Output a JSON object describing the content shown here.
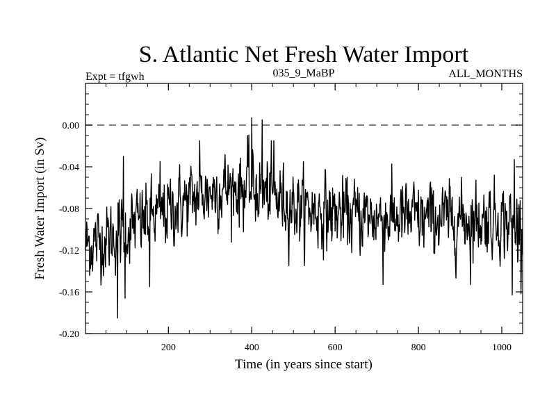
{
  "chart_data": {
    "type": "line",
    "title": "S. Atlantic Net Fresh Water Import",
    "subtitle_left": "Expt = tfgwh",
    "subtitle_center": "035_9_MaBP",
    "subtitle_right": "ALL_MONTHS",
    "xlabel": "Time (in years since start)",
    "ylabel": "Fresh Water Import (in Sv)",
    "xlim": [
      1,
      1050
    ],
    "ylim": [
      -0.2,
      0.04
    ],
    "xticks": [
      200,
      400,
      600,
      800,
      1000
    ],
    "xtick_labels": [
      "200",
      "400",
      "600",
      "800",
      "1000"
    ],
    "yticks": [
      -0.2,
      -0.16,
      -0.12,
      -0.08,
      -0.04,
      0.0
    ],
    "ytick_labels": [
      "-0.20",
      "-0.16",
      "-0.12",
      "-0.08",
      "-0.04",
      "0.00"
    ],
    "reference_line": {
      "y": 0.0,
      "style": "dashed"
    },
    "series": [
      {
        "name": "Net Fresh Water Import",
        "x_start": 1,
        "x_step": 1,
        "n_points": 1050,
        "trend_knots_x": [
          1,
          60,
          120,
          200,
          280,
          340,
          400,
          450,
          520,
          620,
          800,
          1000,
          1050
        ],
        "trend_knots_y": [
          -0.115,
          -0.108,
          -0.095,
          -0.082,
          -0.066,
          -0.06,
          -0.06,
          -0.068,
          -0.08,
          -0.086,
          -0.09,
          -0.09,
          -0.098
        ],
        "noise_std": 0.016,
        "max": {
          "x": 400,
          "y": 0.007
        },
        "min": {
          "x": 78,
          "y": -0.185
        },
        "spikes": [
          {
            "x": 400,
            "y": 0.007
          },
          {
            "x": 425,
            "y": 0.005
          },
          {
            "x": 78,
            "y": -0.185
          },
          {
            "x": 96,
            "y": -0.166
          },
          {
            "x": 155,
            "y": -0.155
          },
          {
            "x": 715,
            "y": -0.153
          },
          {
            "x": 925,
            "y": -0.153
          },
          {
            "x": 1025,
            "y": -0.163
          },
          {
            "x": 92,
            "y": -0.03
          },
          {
            "x": 180,
            "y": -0.035
          },
          {
            "x": 275,
            "y": -0.015
          },
          {
            "x": 390,
            "y": -0.01
          },
          {
            "x": 453,
            "y": -0.015
          },
          {
            "x": 1030,
            "y": -0.033
          }
        ]
      }
    ]
  }
}
